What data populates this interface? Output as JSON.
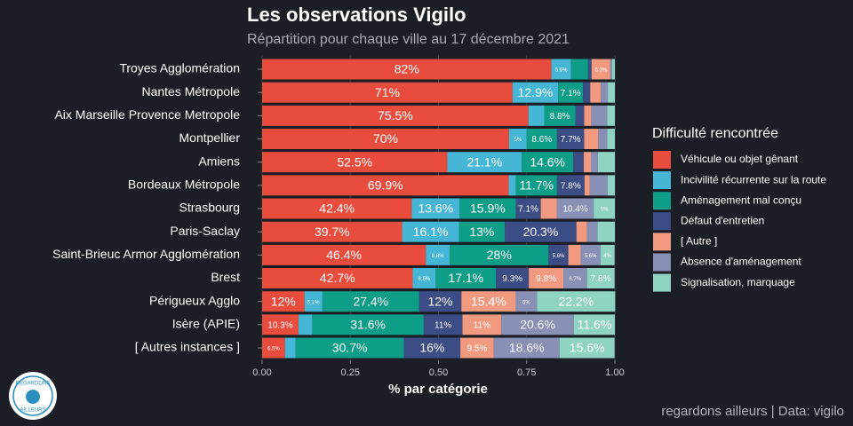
{
  "chart_data": {
    "type": "stacked-bar-horizontal",
    "title": "Les observations Vigilo",
    "subtitle": "Répartition pour chaque ville au 17 décembre 2021",
    "x_label": "% par catégorie",
    "legend_title": "Difficulté rencontrée",
    "caption": "regardons ailleurs | Data: vigilo",
    "logo_text": [
      "REGARDONS",
      "AILLEURS"
    ],
    "xlim": [
      0,
      1
    ],
    "xticks": [
      {
        "value": 0,
        "label": "0.00"
      },
      {
        "value": 0.25,
        "label": "0.25"
      },
      {
        "value": 0.5,
        "label": "0.50"
      },
      {
        "value": 0.75,
        "label": "0.75"
      },
      {
        "value": 1,
        "label": "1.00"
      }
    ],
    "grid": true,
    "legend": "right",
    "categories": [
      "Troyes Agglomération",
      "Nantes Métropole",
      "Aix Marseille Provence Metropole",
      "Montpellier",
      "Amiens",
      "Bordeaux Métropole",
      "Strasbourg",
      "Paris-Saclay",
      "Saint-Brieuc Armor Agglomération",
      "Brest",
      "Périgueux Agglo",
      "Isère (APIE)",
      "[ Autres instances ]"
    ],
    "series": [
      {
        "name": "Véhicule ou objet gênant",
        "color": "#e74c3c",
        "values": [
          0.82,
          0.71,
          0.755,
          0.7,
          0.525,
          0.699,
          0.424,
          0.397,
          0.464,
          0.427,
          0.12,
          0.103,
          0.065
        ],
        "value_labels": [
          "82%",
          "71%",
          "75.5%",
          "70%",
          "52.5%",
          "69.9%",
          "42.4%",
          "39.7%",
          "46.4%",
          "42.7%",
          "12%",
          "10.3%",
          "6.5%"
        ]
      },
      {
        "name": "Incivilité récurrente sur la route",
        "color": "#45b6d6",
        "values": [
          0.056,
          0.129,
          0.045,
          0.05,
          0.211,
          0.02,
          0.136,
          0.161,
          0.068,
          0.065,
          0.051,
          0.039,
          0.03
        ],
        "value_labels": [
          "5.6%",
          "12.9%",
          null,
          "5%",
          "21.1%",
          null,
          "13.6%",
          "16.1%",
          "6.8%",
          "6.5%",
          "5.1%",
          null,
          null
        ]
      },
      {
        "name": "Aménagement mal conçu",
        "color": "#0e9e87",
        "values": [
          0.048,
          0.071,
          0.088,
          0.086,
          0.146,
          0.117,
          0.159,
          0.13,
          0.28,
          0.171,
          0.274,
          0.316,
          0.307
        ],
        "value_labels": [
          null,
          "7.1%",
          "8.8%",
          "8.6%",
          "14.6%",
          "11.7%",
          "15.9%",
          "13%",
          "28%",
          "17.1%",
          "27.4%",
          "31.6%",
          "30.7%"
        ]
      },
      {
        "name": "Défaut d'entretien",
        "color": "#3c4d85",
        "values": [
          0.01,
          0.02,
          0.025,
          0.077,
          0.03,
          0.078,
          0.071,
          0.203,
          0.056,
          0.093,
          0.12,
          0.11,
          0.16
        ],
        "value_labels": [
          null,
          null,
          null,
          "7.7%",
          null,
          "7.8%",
          "7.1%",
          "20.3%",
          "5.6%",
          "9.3%",
          "12%",
          "11%",
          "16%"
        ]
      },
      {
        "name": "[ Autre ]",
        "color": "#f29a80",
        "values": [
          0.053,
          0.03,
          0.02,
          0.04,
          0.02,
          0.015,
          0.046,
          0.03,
          0.035,
          0.098,
          0.154,
          0.11,
          0.095
        ],
        "value_labels": [
          "5.3%",
          null,
          null,
          null,
          null,
          null,
          null,
          null,
          null,
          "9.8%",
          "15.4%",
          "11%",
          "9.5%"
        ]
      },
      {
        "name": "Absence d'aménagement",
        "color": "#8890b5",
        "values": [
          0.005,
          0.02,
          0.045,
          0.025,
          0.02,
          0.05,
          0.104,
          0.03,
          0.056,
          0.067,
          0.06,
          0.206,
          0.186
        ],
        "value_labels": [
          null,
          null,
          null,
          null,
          null,
          null,
          "10.4%",
          null,
          "5.6%",
          "6.7%",
          "6%",
          "20.6%",
          "18.6%"
        ]
      },
      {
        "name": "Signalisation, marquage",
        "color": "#8fd3c2",
        "values": [
          0.008,
          0.02,
          0.022,
          0.022,
          0.048,
          0.021,
          0.06,
          0.049,
          0.04,
          0.078,
          0.222,
          0.116,
          0.156
        ],
        "value_labels": [
          null,
          null,
          null,
          null,
          null,
          null,
          "6%",
          null,
          "4%",
          "7.8%",
          "22.2%",
          "11.6%",
          "15.6%"
        ]
      }
    ]
  }
}
